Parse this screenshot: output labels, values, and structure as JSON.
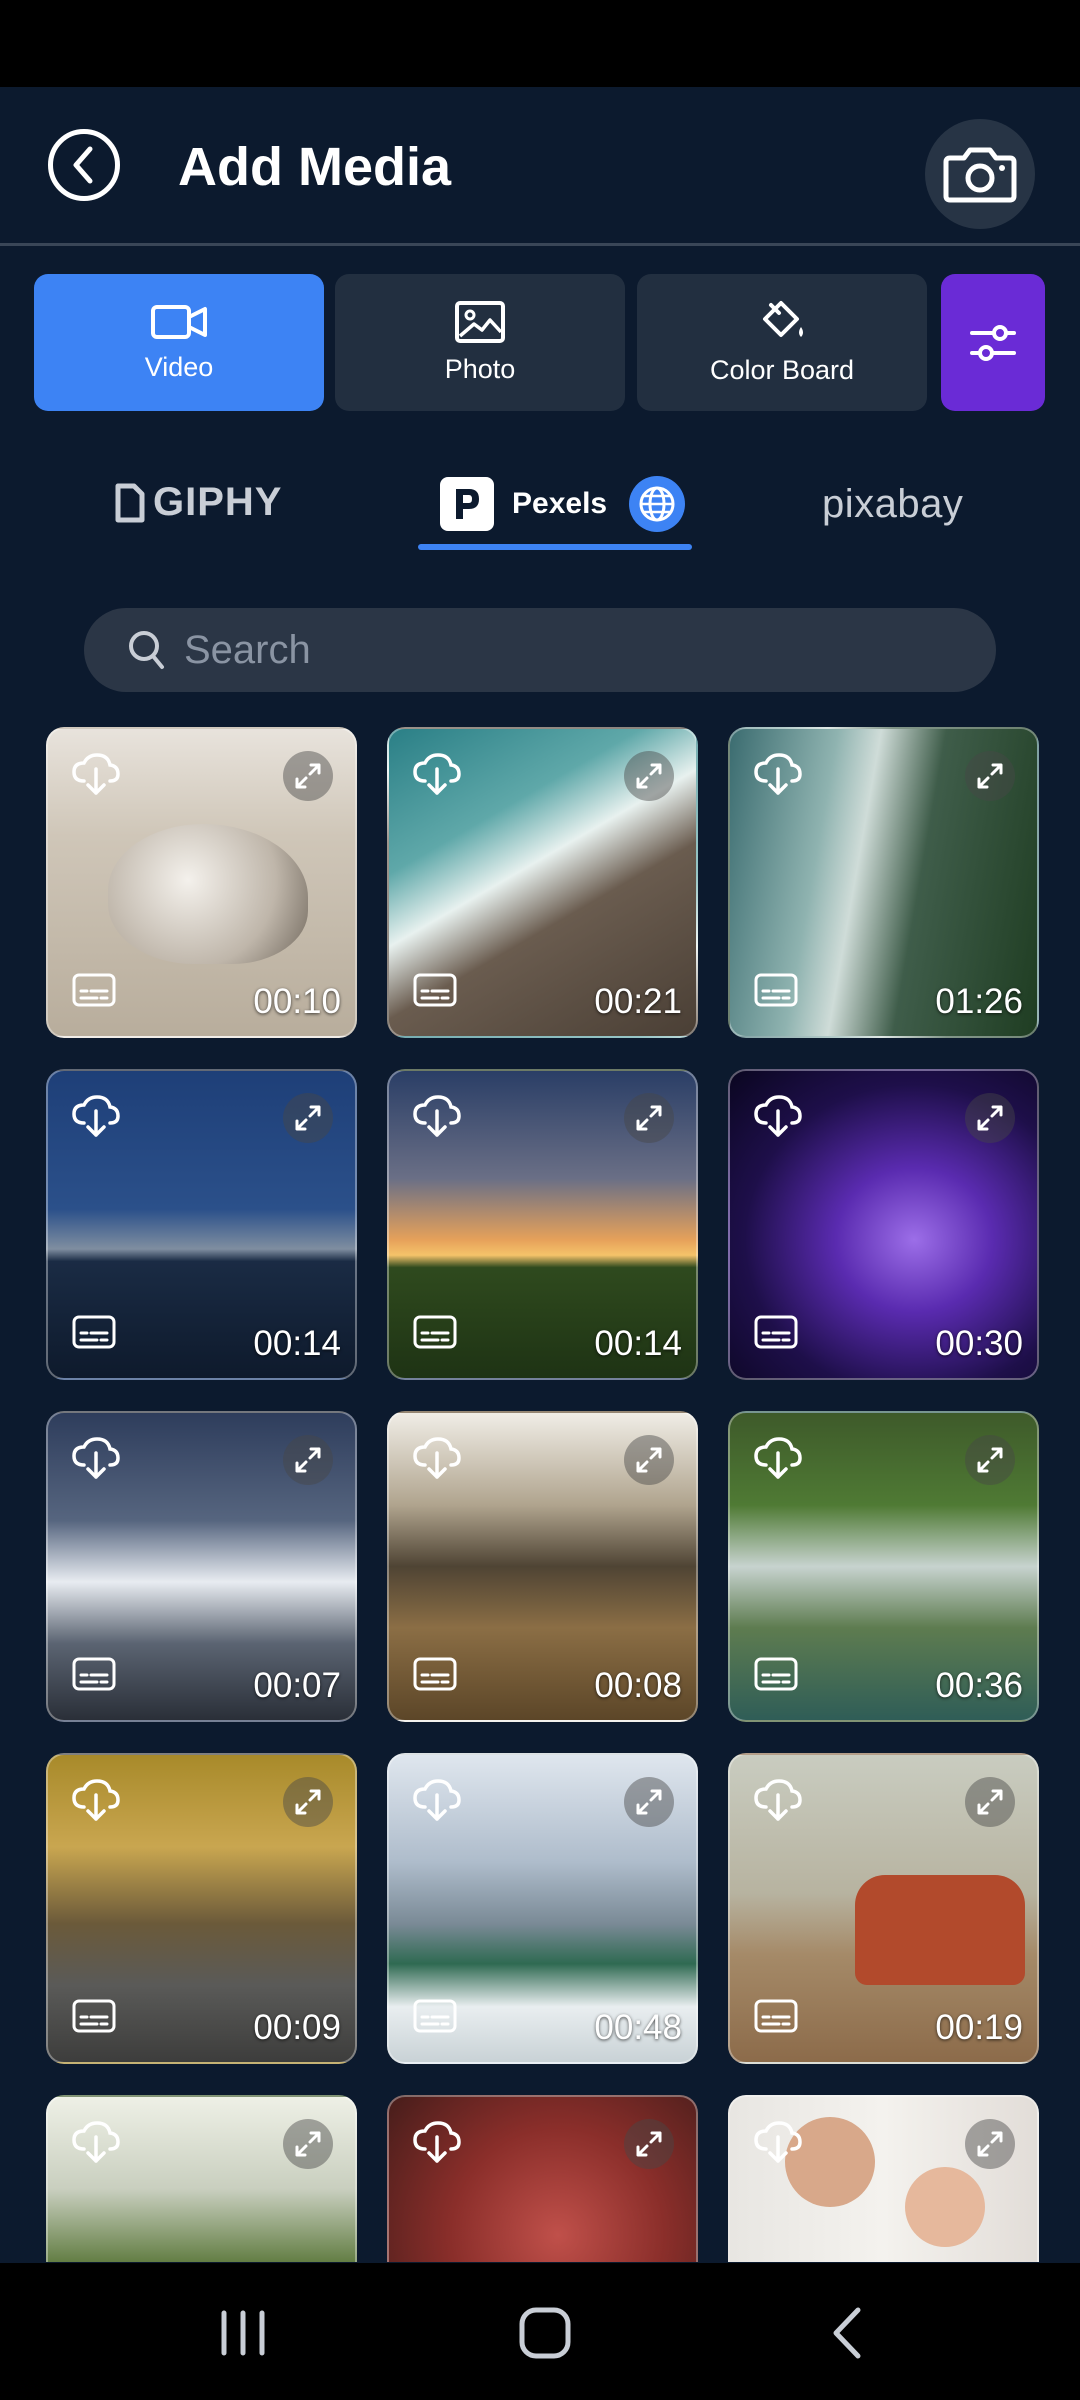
{
  "header": {
    "title": "Add Media"
  },
  "type_tabs": [
    {
      "label": "Video",
      "icon": "video-camera-icon",
      "active": true
    },
    {
      "label": "Photo",
      "icon": "photo-icon",
      "active": false
    },
    {
      "label": "Color Board",
      "icon": "paint-bucket-icon",
      "active": false
    }
  ],
  "sources": {
    "giphy": "GIPHY",
    "pexels": "Pexels",
    "pixabay": "pixabay",
    "active": "Pexels"
  },
  "search": {
    "placeholder": "Search"
  },
  "media": [
    {
      "duration": "00:10",
      "subject": "seal on sand"
    },
    {
      "duration": "00:21",
      "subject": "aerial ocean waves on rocks"
    },
    {
      "duration": "01:26",
      "subject": "aerial coastline with forest"
    },
    {
      "duration": "00:14",
      "subject": "mountain lake at night"
    },
    {
      "duration": "00:14",
      "subject": "sunset with lone tree"
    },
    {
      "duration": "00:30",
      "subject": "purple particle wave"
    },
    {
      "duration": "00:07",
      "subject": "snowy mountain under stars"
    },
    {
      "duration": "00:08",
      "subject": "waves on rocky shore"
    },
    {
      "duration": "00:36",
      "subject": "waterfalls in forest"
    },
    {
      "duration": "00:09",
      "subject": "autumn road"
    },
    {
      "duration": "00:48",
      "subject": "breaking wave"
    },
    {
      "duration": "00:19",
      "subject": "woman with van and balloons"
    },
    {
      "duration": "",
      "subject": "countryside landscape"
    },
    {
      "duration": "",
      "subject": "red autumn leaves"
    },
    {
      "duration": "",
      "subject": "father and daughter"
    }
  ],
  "colors": {
    "accent": "#3d83f4",
    "filter": "#6a2bd6",
    "background": "#0c1a2e",
    "tab": "#222f40"
  }
}
